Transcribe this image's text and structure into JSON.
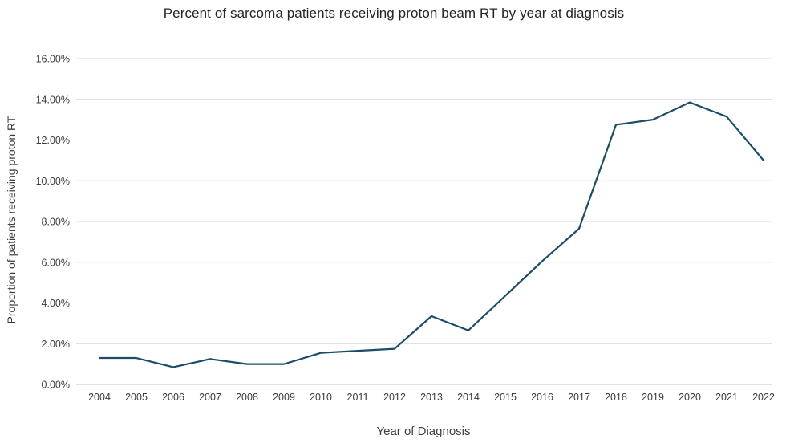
{
  "chart_data": {
    "type": "line",
    "title": "Percent of sarcoma patients receiving proton beam RT by year at diagnosis",
    "xlabel": "Year of Diagnosis",
    "ylabel": "Proportion of patients receiving proton RT",
    "ylim": [
      0,
      16
    ],
    "grid": true,
    "legend": "none",
    "series_name": "Proportion of patients receiving proton RT",
    "line_color": "#1b4e66",
    "gridline_color": "#d9d9d9",
    "categories": [
      "2004",
      "2005",
      "2006",
      "2007",
      "2008",
      "2009",
      "2010",
      "2011",
      "2012",
      "2013",
      "2014",
      "2015",
      "2016",
      "2017",
      "2018",
      "2019",
      "2020",
      "2021",
      "2022"
    ],
    "values": [
      1.3,
      1.3,
      0.85,
      1.25,
      1.0,
      1.0,
      1.55,
      1.65,
      1.75,
      3.35,
      2.65,
      4.35,
      6.05,
      7.65,
      12.75,
      13.0,
      13.85,
      13.15,
      11.0
    ],
    "y_ticks": [
      {
        "value": 0,
        "label": "0.00%"
      },
      {
        "value": 2,
        "label": "2.00%"
      },
      {
        "value": 4,
        "label": "4.00%"
      },
      {
        "value": 6,
        "label": "6.00%"
      },
      {
        "value": 8,
        "label": "8.00%"
      },
      {
        "value": 10,
        "label": "10.00%"
      },
      {
        "value": 12,
        "label": "12.00%"
      },
      {
        "value": 14,
        "label": "14.00%"
      },
      {
        "value": 16,
        "label": "16.00%"
      }
    ]
  }
}
